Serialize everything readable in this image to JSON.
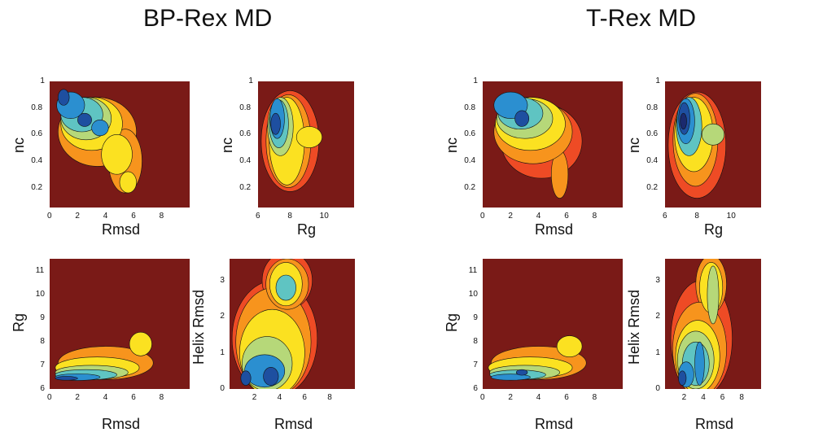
{
  "titles": [
    "BP-Rex MD",
    "T-Rex MD"
  ],
  "palette": [
    "#7a1a17",
    "#c8231d",
    "#ee4b25",
    "#f7941d",
    "#fbe121",
    "#b6d879",
    "#5fc4c2",
    "#2b8fd0",
    "#1e4fa0",
    "#1b2a6e"
  ],
  "chart_data": [
    {
      "type": "heatmap",
      "group": "BP-Rex MD",
      "xlabel": "Rmsd",
      "ylabel": "nc",
      "xlim": [
        0,
        10
      ],
      "ylim": [
        0.05,
        1.0
      ],
      "xticks": [
        0,
        2,
        4,
        6,
        8
      ],
      "yticks": [
        0.2,
        0.4,
        0.6,
        0.8,
        1
      ],
      "background_level": 0,
      "blobs": [
        {
          "x": 3.4,
          "y": 0.62,
          "rx": 2.8,
          "ry": 0.26,
          "level": 3
        },
        {
          "x": 5.4,
          "y": 0.4,
          "rx": 1.2,
          "ry": 0.24,
          "level": 3
        },
        {
          "x": 5.6,
          "y": 0.24,
          "rx": 0.6,
          "ry": 0.08,
          "level": 4
        },
        {
          "x": 3.0,
          "y": 0.68,
          "rx": 2.2,
          "ry": 0.2,
          "level": 4
        },
        {
          "x": 4.8,
          "y": 0.45,
          "rx": 1.1,
          "ry": 0.15,
          "level": 4
        },
        {
          "x": 2.6,
          "y": 0.72,
          "rx": 1.8,
          "ry": 0.16,
          "level": 5
        },
        {
          "x": 2.3,
          "y": 0.75,
          "rx": 1.5,
          "ry": 0.13,
          "level": 6
        },
        {
          "x": 1.5,
          "y": 0.82,
          "rx": 1.0,
          "ry": 0.1,
          "level": 7
        },
        {
          "x": 3.6,
          "y": 0.65,
          "rx": 0.6,
          "ry": 0.06,
          "level": 7
        },
        {
          "x": 2.5,
          "y": 0.71,
          "rx": 0.5,
          "ry": 0.05,
          "level": 8
        },
        {
          "x": 1.0,
          "y": 0.88,
          "rx": 0.4,
          "ry": 0.06,
          "level": 8
        }
      ]
    },
    {
      "type": "heatmap",
      "group": "BP-Rex MD",
      "xlabel": "Rg",
      "ylabel": "nc",
      "xlim": [
        6,
        12
      ],
      "ylim": [
        0.05,
        1.0
      ],
      "xticks": [
        6,
        8,
        10
      ],
      "yticks": [
        0.2,
        0.4,
        0.6,
        0.8,
        1
      ],
      "background_level": 0,
      "blobs": [
        {
          "x": 8.0,
          "y": 0.55,
          "rx": 1.8,
          "ry": 0.38,
          "level": 2
        },
        {
          "x": 7.9,
          "y": 0.55,
          "rx": 1.4,
          "ry": 0.35,
          "level": 3
        },
        {
          "x": 7.8,
          "y": 0.55,
          "rx": 1.1,
          "ry": 0.33,
          "level": 4
        },
        {
          "x": 9.2,
          "y": 0.58,
          "rx": 0.8,
          "ry": 0.08,
          "level": 4
        },
        {
          "x": 7.4,
          "y": 0.66,
          "rx": 0.8,
          "ry": 0.22,
          "level": 5
        },
        {
          "x": 7.3,
          "y": 0.68,
          "rx": 0.6,
          "ry": 0.18,
          "level": 6
        },
        {
          "x": 7.2,
          "y": 0.72,
          "rx": 0.45,
          "ry": 0.15,
          "level": 7
        },
        {
          "x": 7.1,
          "y": 0.68,
          "rx": 0.3,
          "ry": 0.08,
          "level": 8
        }
      ]
    },
    {
      "type": "heatmap",
      "group": "BP-Rex MD",
      "xlabel": "Rmsd",
      "ylabel": "Rg",
      "xlim": [
        0,
        10
      ],
      "ylim": [
        6,
        11.5
      ],
      "xticks": [
        0,
        2,
        4,
        6,
        8
      ],
      "yticks": [
        6,
        7,
        8,
        9,
        10,
        11
      ],
      "background_level": 0,
      "blobs": [
        {
          "x": 4.0,
          "y": 7.1,
          "rx": 3.4,
          "ry": 0.7,
          "level": 3
        },
        {
          "x": 6.5,
          "y": 7.9,
          "rx": 0.8,
          "ry": 0.5,
          "level": 4
        },
        {
          "x": 3.4,
          "y": 6.9,
          "rx": 3.0,
          "ry": 0.45,
          "level": 4
        },
        {
          "x": 3.0,
          "y": 6.7,
          "rx": 2.6,
          "ry": 0.3,
          "level": 5
        },
        {
          "x": 2.6,
          "y": 6.6,
          "rx": 2.2,
          "ry": 0.22,
          "level": 6
        },
        {
          "x": 2.0,
          "y": 6.5,
          "rx": 1.6,
          "ry": 0.14,
          "level": 7
        },
        {
          "x": 1.2,
          "y": 6.45,
          "rx": 0.8,
          "ry": 0.08,
          "level": 8
        }
      ]
    },
    {
      "type": "heatmap",
      "group": "BP-Rex MD",
      "xlabel": "Rmsd",
      "ylabel": "Helix Rmsd",
      "xlim": [
        0,
        10
      ],
      "ylim": [
        0,
        3.6
      ],
      "xticks": [
        2,
        4,
        6,
        8
      ],
      "yticks": [
        0,
        1,
        2,
        3
      ],
      "background_level": 0,
      "blobs": [
        {
          "x": 3.6,
          "y": 1.4,
          "rx": 3.4,
          "ry": 1.6,
          "level": 2
        },
        {
          "x": 4.6,
          "y": 3.0,
          "rx": 2.0,
          "ry": 0.8,
          "level": 2
        },
        {
          "x": 3.5,
          "y": 1.3,
          "rx": 3.0,
          "ry": 1.5,
          "level": 3
        },
        {
          "x": 4.6,
          "y": 2.9,
          "rx": 1.7,
          "ry": 0.7,
          "level": 3
        },
        {
          "x": 3.4,
          "y": 1.0,
          "rx": 2.6,
          "ry": 1.2,
          "level": 4
        },
        {
          "x": 4.5,
          "y": 2.9,
          "rx": 1.3,
          "ry": 0.6,
          "level": 4
        },
        {
          "x": 3.0,
          "y": 0.7,
          "rx": 2.0,
          "ry": 0.75,
          "level": 5
        },
        {
          "x": 4.5,
          "y": 2.8,
          "rx": 0.8,
          "ry": 0.35,
          "level": 6
        },
        {
          "x": 2.8,
          "y": 0.5,
          "rx": 1.6,
          "ry": 0.45,
          "level": 7
        },
        {
          "x": 3.3,
          "y": 0.35,
          "rx": 0.6,
          "ry": 0.25,
          "level": 8
        },
        {
          "x": 1.3,
          "y": 0.3,
          "rx": 0.4,
          "ry": 0.2,
          "level": 8
        }
      ]
    },
    {
      "type": "heatmap",
      "group": "T-Rex MD",
      "xlabel": "Rmsd",
      "ylabel": "nc",
      "xlim": [
        0,
        10
      ],
      "ylim": [
        0.05,
        1.0
      ],
      "xticks": [
        0,
        2,
        4,
        6,
        8
      ],
      "yticks": [
        0.2,
        0.4,
        0.6,
        0.8,
        1
      ],
      "background_level": 0,
      "blobs": [
        {
          "x": 4.2,
          "y": 0.55,
          "rx": 2.9,
          "ry": 0.28,
          "level": 2
        },
        {
          "x": 5.5,
          "y": 0.3,
          "rx": 0.6,
          "ry": 0.18,
          "level": 3
        },
        {
          "x": 3.6,
          "y": 0.62,
          "rx": 2.8,
          "ry": 0.24,
          "level": 3
        },
        {
          "x": 3.4,
          "y": 0.68,
          "rx": 2.5,
          "ry": 0.2,
          "level": 4
        },
        {
          "x": 3.0,
          "y": 0.72,
          "rx": 2.0,
          "ry": 0.15,
          "level": 5
        },
        {
          "x": 2.7,
          "y": 0.76,
          "rx": 1.6,
          "ry": 0.12,
          "level": 6
        },
        {
          "x": 2.0,
          "y": 0.82,
          "rx": 1.2,
          "ry": 0.1,
          "level": 7
        },
        {
          "x": 2.8,
          "y": 0.72,
          "rx": 0.5,
          "ry": 0.06,
          "level": 8
        }
      ]
    },
    {
      "type": "heatmap",
      "group": "T-Rex MD",
      "xlabel": "Rg",
      "ylabel": "nc",
      "xlim": [
        6,
        12
      ],
      "ylim": [
        0.05,
        1.0
      ],
      "xticks": [
        6,
        8,
        10
      ],
      "yticks": [
        0.2,
        0.4,
        0.6,
        0.8,
        1
      ],
      "background_level": 0,
      "blobs": [
        {
          "x": 8.0,
          "y": 0.52,
          "rx": 1.8,
          "ry": 0.4,
          "level": 2
        },
        {
          "x": 7.9,
          "y": 0.56,
          "rx": 1.4,
          "ry": 0.35,
          "level": 3
        },
        {
          "x": 7.8,
          "y": 0.6,
          "rx": 1.2,
          "ry": 0.28,
          "level": 4
        },
        {
          "x": 9.0,
          "y": 0.6,
          "rx": 0.7,
          "ry": 0.08,
          "level": 5
        },
        {
          "x": 7.5,
          "y": 0.66,
          "rx": 0.8,
          "ry": 0.22,
          "level": 6
        },
        {
          "x": 7.3,
          "y": 0.7,
          "rx": 0.55,
          "ry": 0.17,
          "level": 7
        },
        {
          "x": 7.2,
          "y": 0.72,
          "rx": 0.35,
          "ry": 0.12,
          "level": 8
        },
        {
          "x": 7.15,
          "y": 0.7,
          "rx": 0.2,
          "ry": 0.06,
          "level": 9
        }
      ]
    },
    {
      "type": "heatmap",
      "group": "T-Rex MD",
      "xlabel": "Rmsd",
      "ylabel": "Rg",
      "xlim": [
        0,
        10
      ],
      "ylim": [
        6,
        11.5
      ],
      "xticks": [
        0,
        2,
        4,
        6,
        8
      ],
      "yticks": [
        6,
        7,
        8,
        9,
        10,
        11
      ],
      "background_level": 0,
      "blobs": [
        {
          "x": 4.0,
          "y": 7.1,
          "rx": 3.4,
          "ry": 0.7,
          "level": 3
        },
        {
          "x": 6.2,
          "y": 7.8,
          "rx": 0.9,
          "ry": 0.45,
          "level": 4
        },
        {
          "x": 3.4,
          "y": 6.9,
          "rx": 3.0,
          "ry": 0.45,
          "level": 4
        },
        {
          "x": 3.0,
          "y": 6.7,
          "rx": 2.5,
          "ry": 0.3,
          "level": 5
        },
        {
          "x": 2.5,
          "y": 6.6,
          "rx": 2.0,
          "ry": 0.2,
          "level": 6
        },
        {
          "x": 2.0,
          "y": 6.5,
          "rx": 1.4,
          "ry": 0.13,
          "level": 7
        },
        {
          "x": 2.8,
          "y": 6.7,
          "rx": 0.4,
          "ry": 0.12,
          "level": 8
        }
      ]
    },
    {
      "type": "heatmap",
      "group": "T-Rex MD",
      "xlabel": "Rmsd",
      "ylabel": "Helix Rmsd",
      "xlim": [
        0,
        10
      ],
      "ylim": [
        0,
        3.6
      ],
      "xticks": [
        2,
        4,
        6,
        8
      ],
      "yticks": [
        0,
        1,
        2,
        3
      ],
      "background_level": 0,
      "blobs": [
        {
          "x": 3.8,
          "y": 1.4,
          "rx": 3.2,
          "ry": 1.6,
          "level": 2
        },
        {
          "x": 4.8,
          "y": 2.9,
          "rx": 1.6,
          "ry": 0.8,
          "level": 3
        },
        {
          "x": 3.6,
          "y": 1.1,
          "rx": 2.8,
          "ry": 1.3,
          "level": 3
        },
        {
          "x": 4.8,
          "y": 2.8,
          "rx": 1.2,
          "ry": 0.7,
          "level": 4
        },
        {
          "x": 3.4,
          "y": 0.9,
          "rx": 2.3,
          "ry": 1.0,
          "level": 4
        },
        {
          "x": 5.0,
          "y": 2.6,
          "rx": 0.6,
          "ry": 0.8,
          "level": 5
        },
        {
          "x": 3.2,
          "y": 0.8,
          "rx": 1.9,
          "ry": 0.8,
          "level": 5
        },
        {
          "x": 3.2,
          "y": 0.7,
          "rx": 1.4,
          "ry": 0.6,
          "level": 6
        },
        {
          "x": 3.6,
          "y": 0.7,
          "rx": 0.5,
          "ry": 0.6,
          "level": 7
        },
        {
          "x": 2.2,
          "y": 0.4,
          "rx": 0.8,
          "ry": 0.35,
          "level": 7
        },
        {
          "x": 1.8,
          "y": 0.3,
          "rx": 0.4,
          "ry": 0.2,
          "level": 8
        }
      ]
    }
  ]
}
